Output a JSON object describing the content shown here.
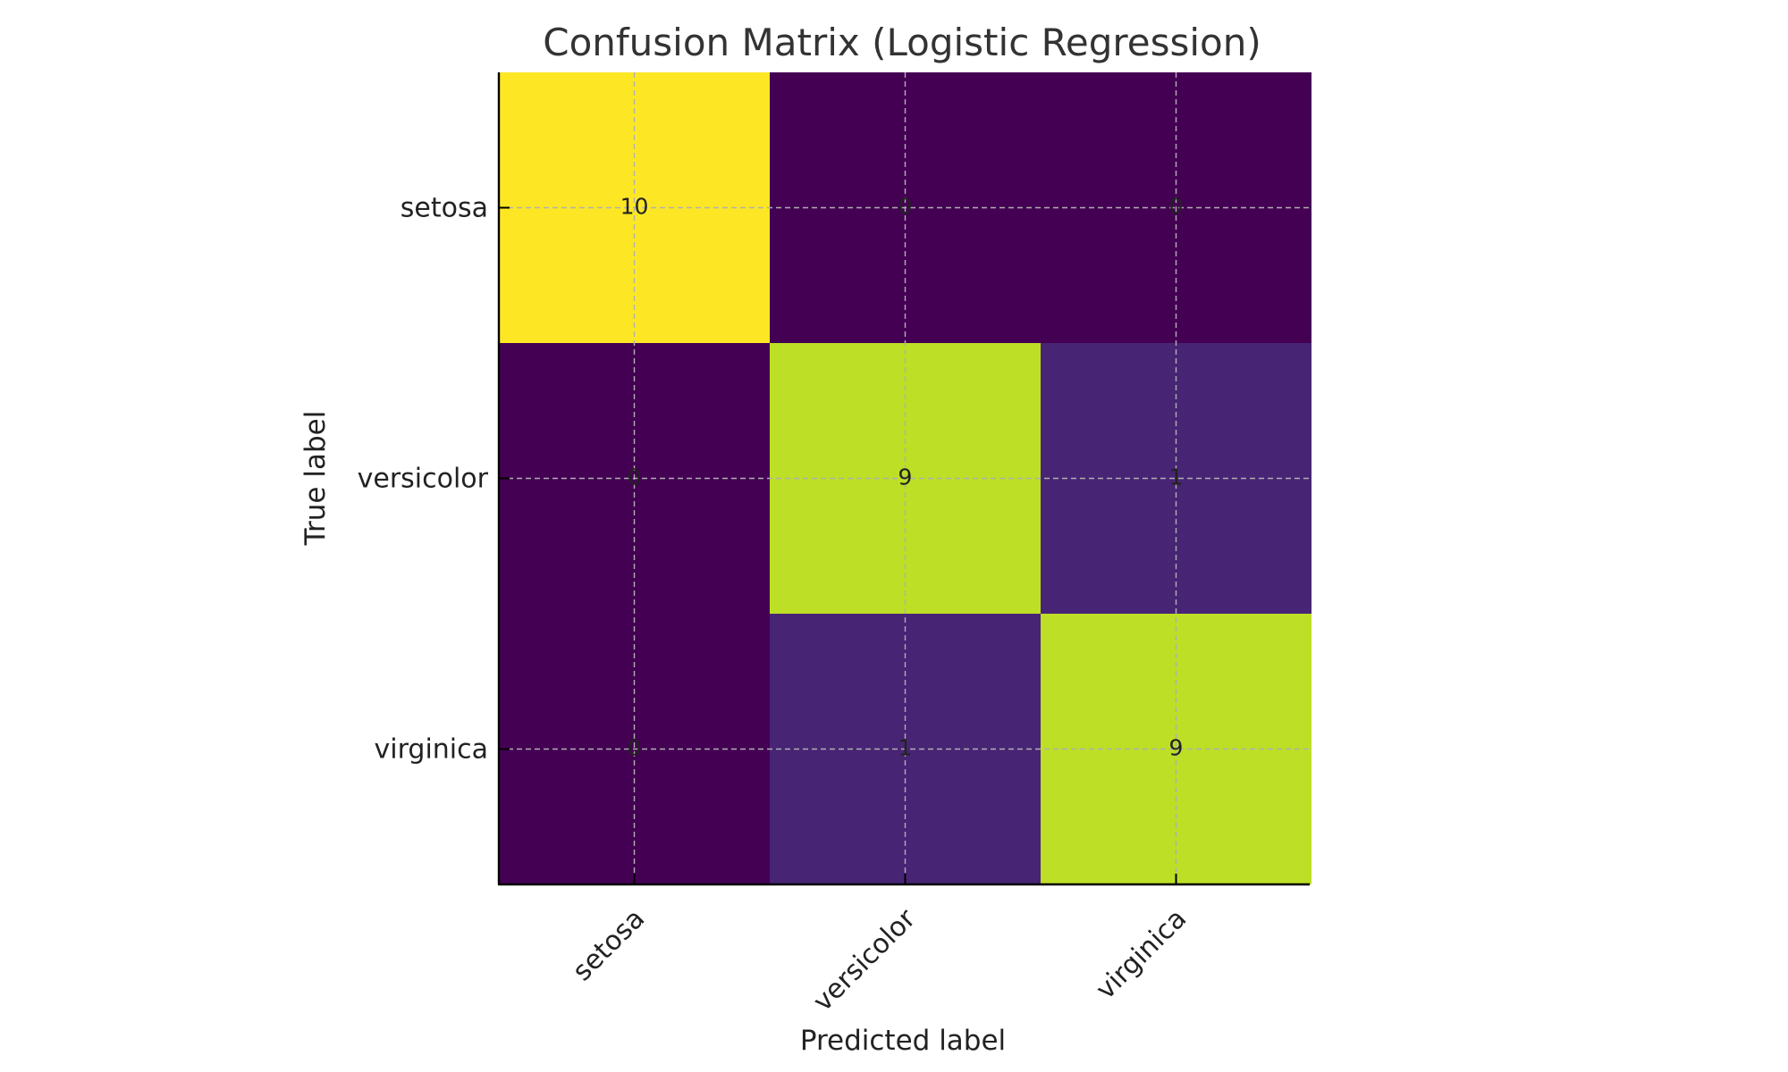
{
  "chart_data": {
    "type": "heatmap",
    "title": "Confusion Matrix (Logistic Regression)",
    "xlabel": "Predicted label",
    "ylabel": "True label",
    "x_categories": [
      "setosa",
      "versicolor",
      "virginica"
    ],
    "y_categories": [
      "setosa",
      "versicolor",
      "virginica"
    ],
    "values": [
      [
        10,
        0,
        0
      ],
      [
        0,
        9,
        1
      ],
      [
        0,
        1,
        9
      ]
    ],
    "colormap": "viridis",
    "value_range": [
      0,
      10
    ],
    "grid": true,
    "colors": {
      "0": "#440154",
      "1": "#482475",
      "9": "#bddf26",
      "10": "#fde725"
    }
  }
}
